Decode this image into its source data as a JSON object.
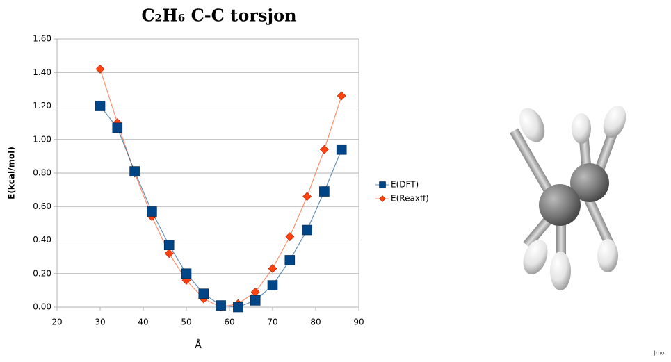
{
  "chart_data": {
    "type": "line",
    "title": "C₂H₆ C-C torsjon",
    "x_label": "Å",
    "y_label": "E(kcal/mol)",
    "x": [
      30,
      34,
      38,
      42,
      46,
      50,
      54,
      58,
      62,
      66,
      70,
      74,
      78,
      82,
      86
    ],
    "series": [
      {
        "name": "E(DFT)",
        "color": "#004586",
        "marker": "square",
        "values": [
          1.2,
          1.07,
          0.81,
          0.57,
          0.37,
          0.2,
          0.08,
          0.01,
          0.0,
          0.04,
          0.13,
          0.28,
          0.46,
          0.69,
          0.94
        ]
      },
      {
        "name": "E(Reaxff)",
        "color": "#ff420e",
        "marker": "diamond",
        "values": [
          1.42,
          1.1,
          0.8,
          0.54,
          0.32,
          0.16,
          0.05,
          0.0,
          0.02,
          0.09,
          0.23,
          0.42,
          0.66,
          0.94,
          1.26
        ]
      }
    ],
    "xlim": [
      20,
      90
    ],
    "xticks": [
      20,
      30,
      40,
      50,
      60,
      70,
      80,
      90
    ],
    "ylim": [
      0,
      1.6
    ],
    "yticks": [
      {
        "value": 0,
        "label": "0.00"
      },
      {
        "value": 0.2,
        "label": "0.20"
      },
      {
        "value": 0.4,
        "label": "0.40"
      },
      {
        "value": 0.6,
        "label": "0.60"
      },
      {
        "value": 0.8,
        "label": "0.80"
      },
      {
        "value": 1.0,
        "label": "1.00"
      },
      {
        "value": 1.2,
        "label": "1.20"
      },
      {
        "value": 1.4,
        "label": "1.40"
      },
      {
        "value": 1.6,
        "label": "1.60"
      }
    ],
    "grid": true,
    "legend": "right"
  },
  "viewer_label": "Jmol"
}
